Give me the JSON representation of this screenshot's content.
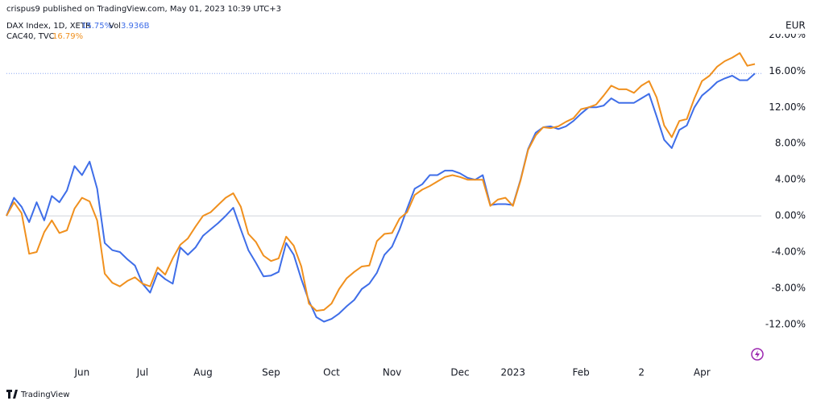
{
  "header": {
    "publisher": "crispus9 published on TradingView.com, May 01, 2023 10:39 UTC+3",
    "brand": "TradingView"
  },
  "chart_data": {
    "type": "line",
    "currency": "EUR",
    "volume_label": "Vol",
    "volume": "3.936B",
    "categories": [
      null,
      null,
      null,
      null,
      null,
      null,
      null,
      null,
      null,
      null,
      "Jun",
      null,
      null,
      null,
      null,
      null,
      null,
      null,
      "Jul",
      null,
      null,
      null,
      null,
      null,
      null,
      null,
      "Aug",
      null,
      null,
      null,
      null,
      null,
      null,
      null,
      null,
      "Sep",
      null,
      null,
      null,
      null,
      null,
      null,
      null,
      "Oct",
      null,
      null,
      null,
      null,
      null,
      null,
      null,
      "Nov",
      null,
      null,
      null,
      null,
      null,
      null,
      null,
      null,
      "Dec",
      null,
      null,
      null,
      null,
      null,
      null,
      "2023",
      null,
      null,
      null,
      null,
      null,
      null,
      null,
      null,
      "Feb",
      null,
      null,
      null,
      null,
      null,
      null,
      null,
      "2",
      null,
      null,
      null,
      null,
      null,
      null,
      null,
      "Apr",
      null,
      null,
      null,
      null,
      null,
      null,
      null
    ],
    "series": [
      {
        "name": "DAX Index, 1D, XETR",
        "color": "#3f6ee8",
        "last_label": "15.75%",
        "values": [
          0,
          2,
          1,
          -0.7,
          1.5,
          -0.5,
          2.2,
          1.5,
          2.8,
          5.5,
          4.5,
          6,
          3,
          -3,
          -3.8,
          -4,
          -4.8,
          -5.5,
          -7.5,
          -8.5,
          -6.3,
          -7,
          -7.5,
          -3.5,
          -4.3,
          -3.5,
          -2.2,
          -1.5,
          -0.8,
          0,
          0.9,
          -1.5,
          -3.8,
          -5.2,
          -6.7,
          -6.6,
          -6.2,
          -3,
          -4.3,
          -7,
          -9.4,
          -11.2,
          -11.7,
          -11.4,
          -10.8,
          -10,
          -9.3,
          -8.1,
          -7.5,
          -6.3,
          -4.3,
          -3.4,
          -1.5,
          0.8,
          3,
          3.5,
          4.5,
          4.5,
          5,
          5,
          4.7,
          4.2,
          4,
          4.5,
          1.2,
          1.3,
          1.3,
          1.2,
          4,
          7.4,
          9.2,
          9.8,
          9.9,
          9.6,
          9.9,
          10.5,
          11.3,
          12,
          12,
          12.2,
          13,
          12.5,
          12.5,
          12.5,
          13,
          13.5,
          11,
          8.4,
          7.5,
          9.5,
          10,
          12,
          13.3,
          14,
          14.8,
          15.2,
          15.5,
          15,
          15,
          15.75
        ]
      },
      {
        "name": "CAC40, TVC",
        "color": "#f0901e",
        "last_label": "16.79%",
        "values": [
          0,
          1.5,
          0.3,
          -4.2,
          -4,
          -1.8,
          -0.5,
          -1.9,
          -1.6,
          0.8,
          2,
          1.6,
          -0.5,
          -6.4,
          -7.4,
          -7.8,
          -7.2,
          -6.8,
          -7.5,
          -7.8,
          -5.7,
          -6.5,
          -4.7,
          -3.2,
          -2.5,
          -1.2,
          0,
          0.4,
          1.2,
          2,
          2.5,
          1,
          -2,
          -2.9,
          -4.4,
          -5,
          -4.7,
          -2.3,
          -3.3,
          -5.6,
          -9.7,
          -10.5,
          -10.4,
          -9.7,
          -8.1,
          -6.9,
          -6.2,
          -5.6,
          -5.5,
          -2.8,
          -2,
          -1.9,
          -0.3,
          0.4,
          2.3,
          2.9,
          3.3,
          3.8,
          4.3,
          4.5,
          4.3,
          4,
          4,
          4,
          1.1,
          1.8,
          2,
          1.1,
          3.9,
          7.3,
          8.9,
          9.8,
          9.7,
          9.9,
          10.4,
          10.8,
          11.8,
          12,
          12.3,
          13.3,
          14.4,
          14,
          14,
          13.6,
          14.4,
          14.9,
          13.1,
          10,
          8.7,
          10.5,
          10.7,
          13,
          14.9,
          15.5,
          16.5,
          17.1,
          17.5,
          18,
          16.6,
          16.79
        ]
      }
    ],
    "ylim": [
      -16.2,
      21.2
    ],
    "yticks": [
      {
        "value": -12,
        "label": "-12.00%"
      },
      {
        "value": -8,
        "label": "-8.00%"
      },
      {
        "value": -4,
        "label": "-4.00%"
      },
      {
        "value": 0,
        "label": "0.00%"
      },
      {
        "value": 4,
        "label": "4.00%"
      },
      {
        "value": 8,
        "label": "8.00%"
      },
      {
        "value": 12,
        "label": "12.00%"
      },
      {
        "value": 16,
        "label": "16.00%"
      },
      {
        "value": 20,
        "label": "20.00%"
      }
    ],
    "grid": false
  }
}
